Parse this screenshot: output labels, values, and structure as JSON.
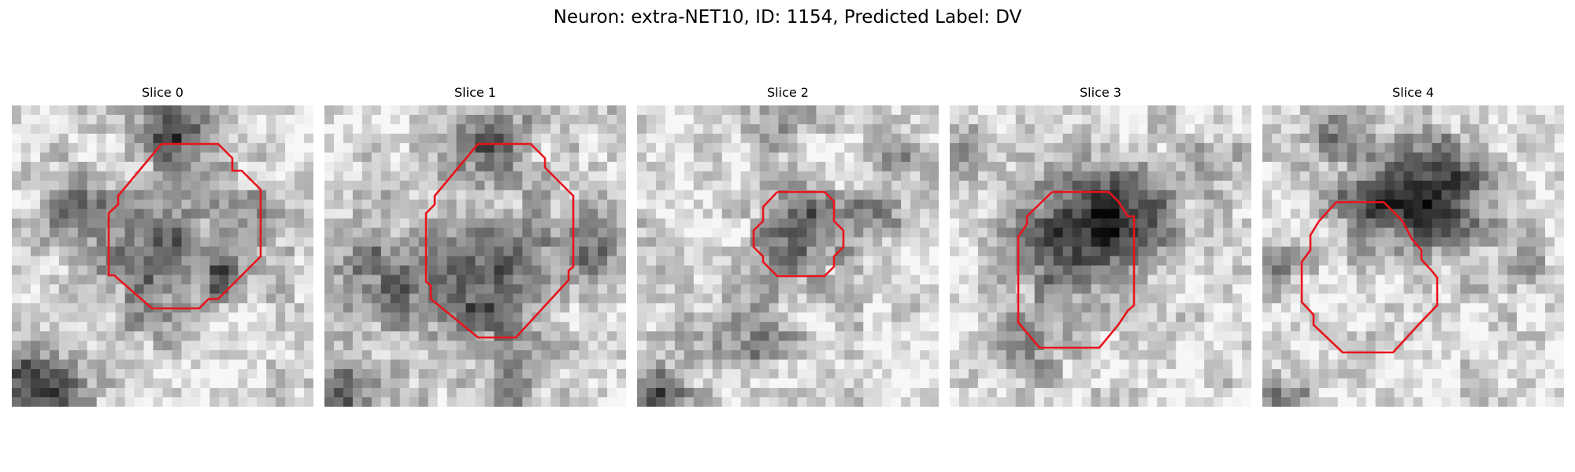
{
  "figure": {
    "title": "Neuron: extra-NET10, ID: 1154, Predicted Label: DV"
  },
  "panels": [
    {
      "title": "Slice 0"
    },
    {
      "title": "Slice 1"
    },
    {
      "title": "Slice 2"
    },
    {
      "title": "Slice 3"
    },
    {
      "title": "Slice 4"
    }
  ],
  "image_style": {
    "colormap": "grayscale",
    "contour_color": "#e8141c",
    "grid_size": 32
  }
}
